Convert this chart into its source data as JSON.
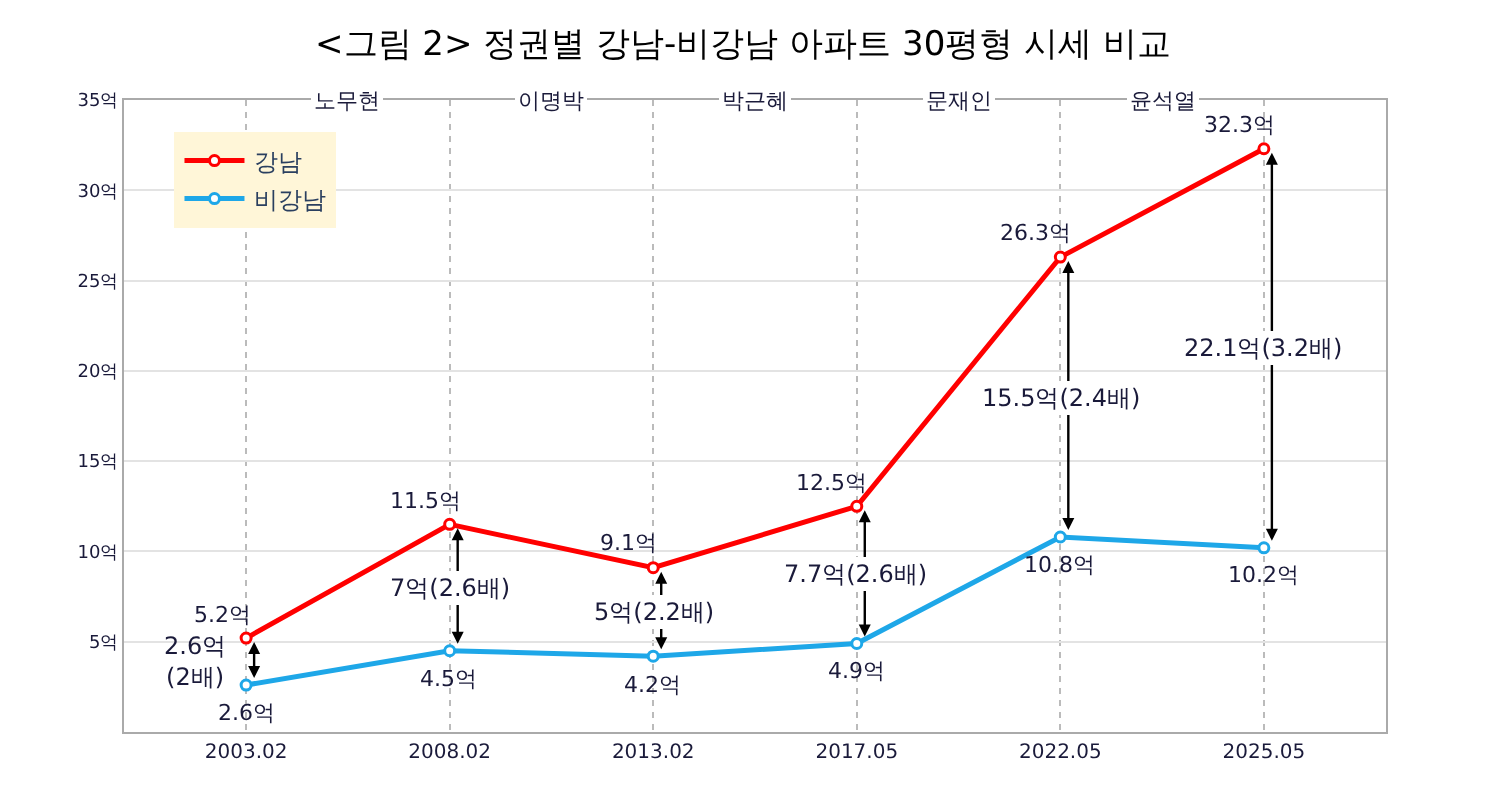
{
  "chart_data": {
    "type": "line",
    "title": "<그림 2> 정권별 강남-비강남 아파트 30평형 시세 비교",
    "categories": [
      "2003.02",
      "2008.02",
      "2013.02",
      "2017.05",
      "2022.05",
      "2025.05"
    ],
    "series": [
      {
        "name": "강남",
        "color": "#ff0000",
        "values": [
          5.2,
          11.5,
          9.1,
          12.5,
          26.3,
          32.3
        ],
        "value_labels": [
          "5.2억",
          "11.5억",
          "9.1억",
          "12.5억",
          "26.3억",
          "32.3억"
        ]
      },
      {
        "name": "비강남",
        "color": "#1ea7e8",
        "values": [
          2.6,
          4.5,
          4.2,
          4.9,
          10.8,
          10.2
        ],
        "value_labels": [
          "2.6억",
          "4.5억",
          "4.2억",
          "4.9억",
          "10.8억",
          "10.2억"
        ]
      }
    ],
    "ylim": [
      0,
      35
    ],
    "yticks": [
      {
        "value": 5,
        "label": "5억"
      },
      {
        "value": 10,
        "label": "10억"
      },
      {
        "value": 15,
        "label": "15억"
      },
      {
        "value": 20,
        "label": "20억"
      },
      {
        "value": 25,
        "label": "25억"
      },
      {
        "value": 30,
        "label": "30억"
      },
      {
        "value": 35,
        "label": "35억"
      }
    ],
    "grid": true,
    "legend": "top left",
    "marker": "circle",
    "line_style": "solid",
    "annotations": [
      "노무현",
      "이명박",
      "박근혜",
      "문재인",
      "윤석열",
      "2.6억\n(2배)",
      "7억(2.6배)",
      "5억(2.2배)",
      "7.7억(2.6배)",
      "15.5억(2.4배)",
      "22.1억(3.2배)"
    ]
  }
}
